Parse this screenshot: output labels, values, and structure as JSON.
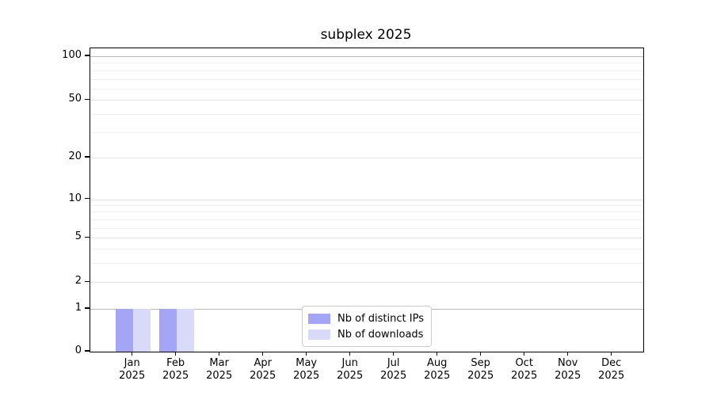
{
  "chart_data": {
    "type": "bar",
    "title": "subplex 2025",
    "categories": [
      "Jan 2025",
      "Feb 2025",
      "Mar 2025",
      "Apr 2025",
      "May 2025",
      "Jun 2025",
      "Jul 2025",
      "Aug 2025",
      "Sep 2025",
      "Oct 2025",
      "Nov 2025",
      "Dec 2025"
    ],
    "series": [
      {
        "name": "Nb of distinct IPs",
        "color": "#a5a5f6",
        "values": [
          1,
          1,
          0,
          0,
          0,
          0,
          0,
          0,
          0,
          0,
          0,
          0
        ]
      },
      {
        "name": "Nb of downloads",
        "color": "#d9d9f9",
        "values": [
          1,
          1,
          0,
          0,
          0,
          0,
          0,
          0,
          0,
          0,
          0,
          0
        ]
      }
    ],
    "xlabel": "",
    "ylabel": "",
    "y_ticks": [
      0,
      1,
      2,
      5,
      10,
      20,
      50,
      100
    ],
    "ylim": [
      0,
      110
    ],
    "yscale": "symlog",
    "grid": "horizontal",
    "legend_position": "lower center"
  }
}
